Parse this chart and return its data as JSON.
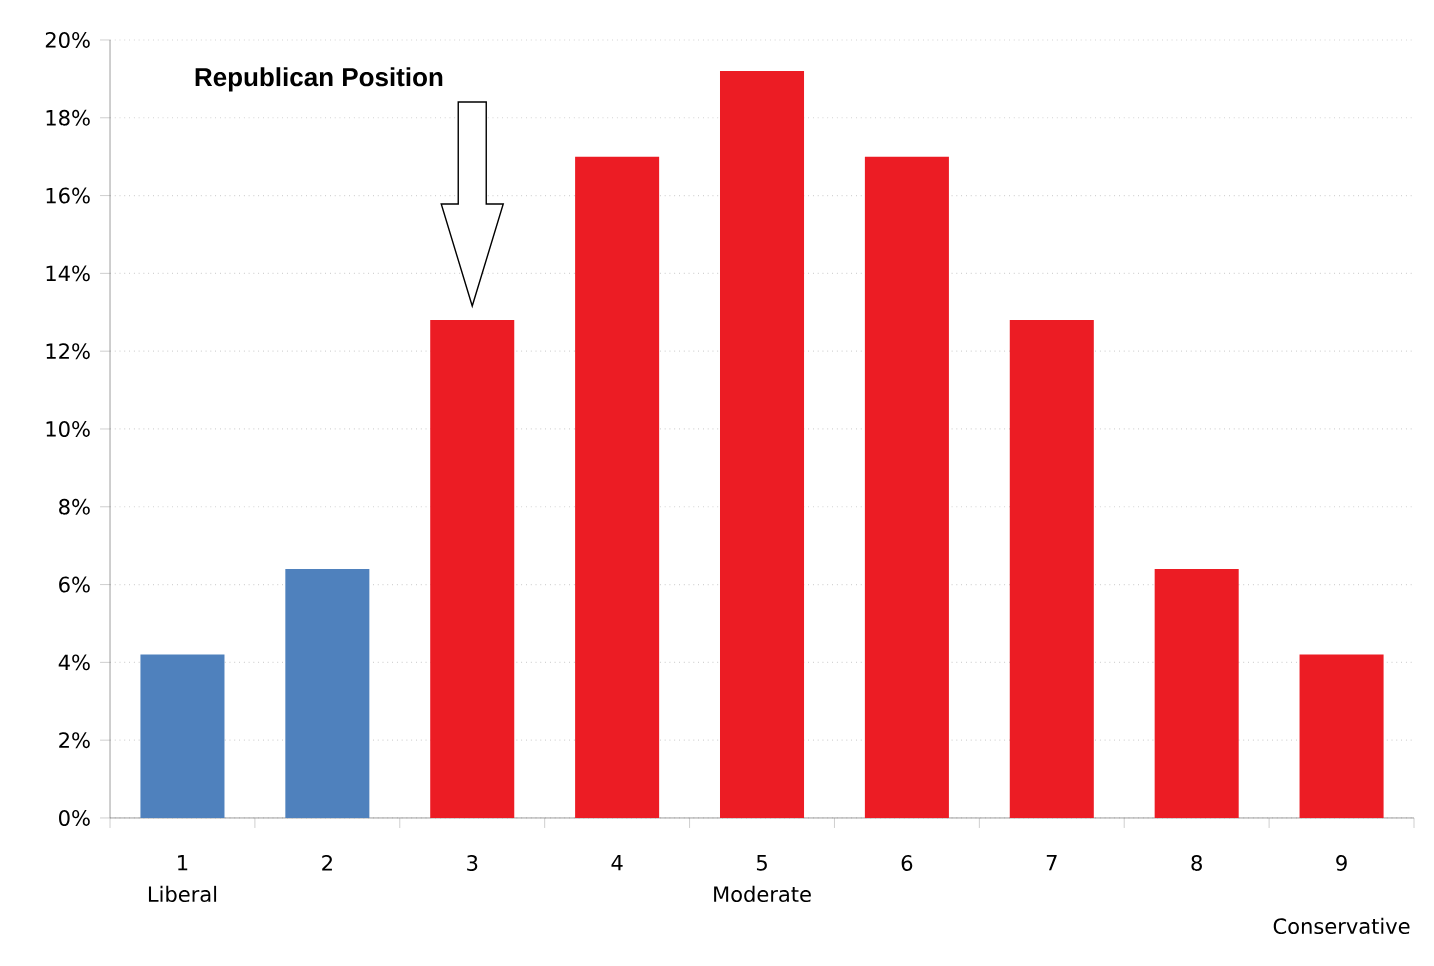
{
  "chart_data": {
    "type": "bar",
    "categories": [
      "1",
      "2",
      "3",
      "4",
      "5",
      "6",
      "7",
      "8",
      "9"
    ],
    "values": [
      4.2,
      6.4,
      12.8,
      17.0,
      19.2,
      17.0,
      12.8,
      6.4,
      4.2
    ],
    "colors": [
      "#4f81bd",
      "#4f81bd",
      "#ec1c24",
      "#ec1c24",
      "#ec1c24",
      "#ec1c24",
      "#ec1c24",
      "#ec1c24",
      "#ec1c24"
    ],
    "ylim": [
      0,
      20
    ],
    "yticks": [
      {
        "value": 0,
        "label": "0%"
      },
      {
        "value": 2,
        "label": "2%"
      },
      {
        "value": 4,
        "label": "4%"
      },
      {
        "value": 6,
        "label": "6%"
      },
      {
        "value": 8,
        "label": "8%"
      },
      {
        "value": 10,
        "label": "10%"
      },
      {
        "value": 12,
        "label": "12%"
      },
      {
        "value": 14,
        "label": "14%"
      },
      {
        "value": 16,
        "label": "16%"
      },
      {
        "value": 18,
        "label": "18%"
      },
      {
        "value": 20,
        "label": "20%"
      }
    ],
    "grid": "y",
    "annotations": [
      "Republican Position",
      "Liberal",
      "Moderate",
      "Conservative"
    ]
  }
}
